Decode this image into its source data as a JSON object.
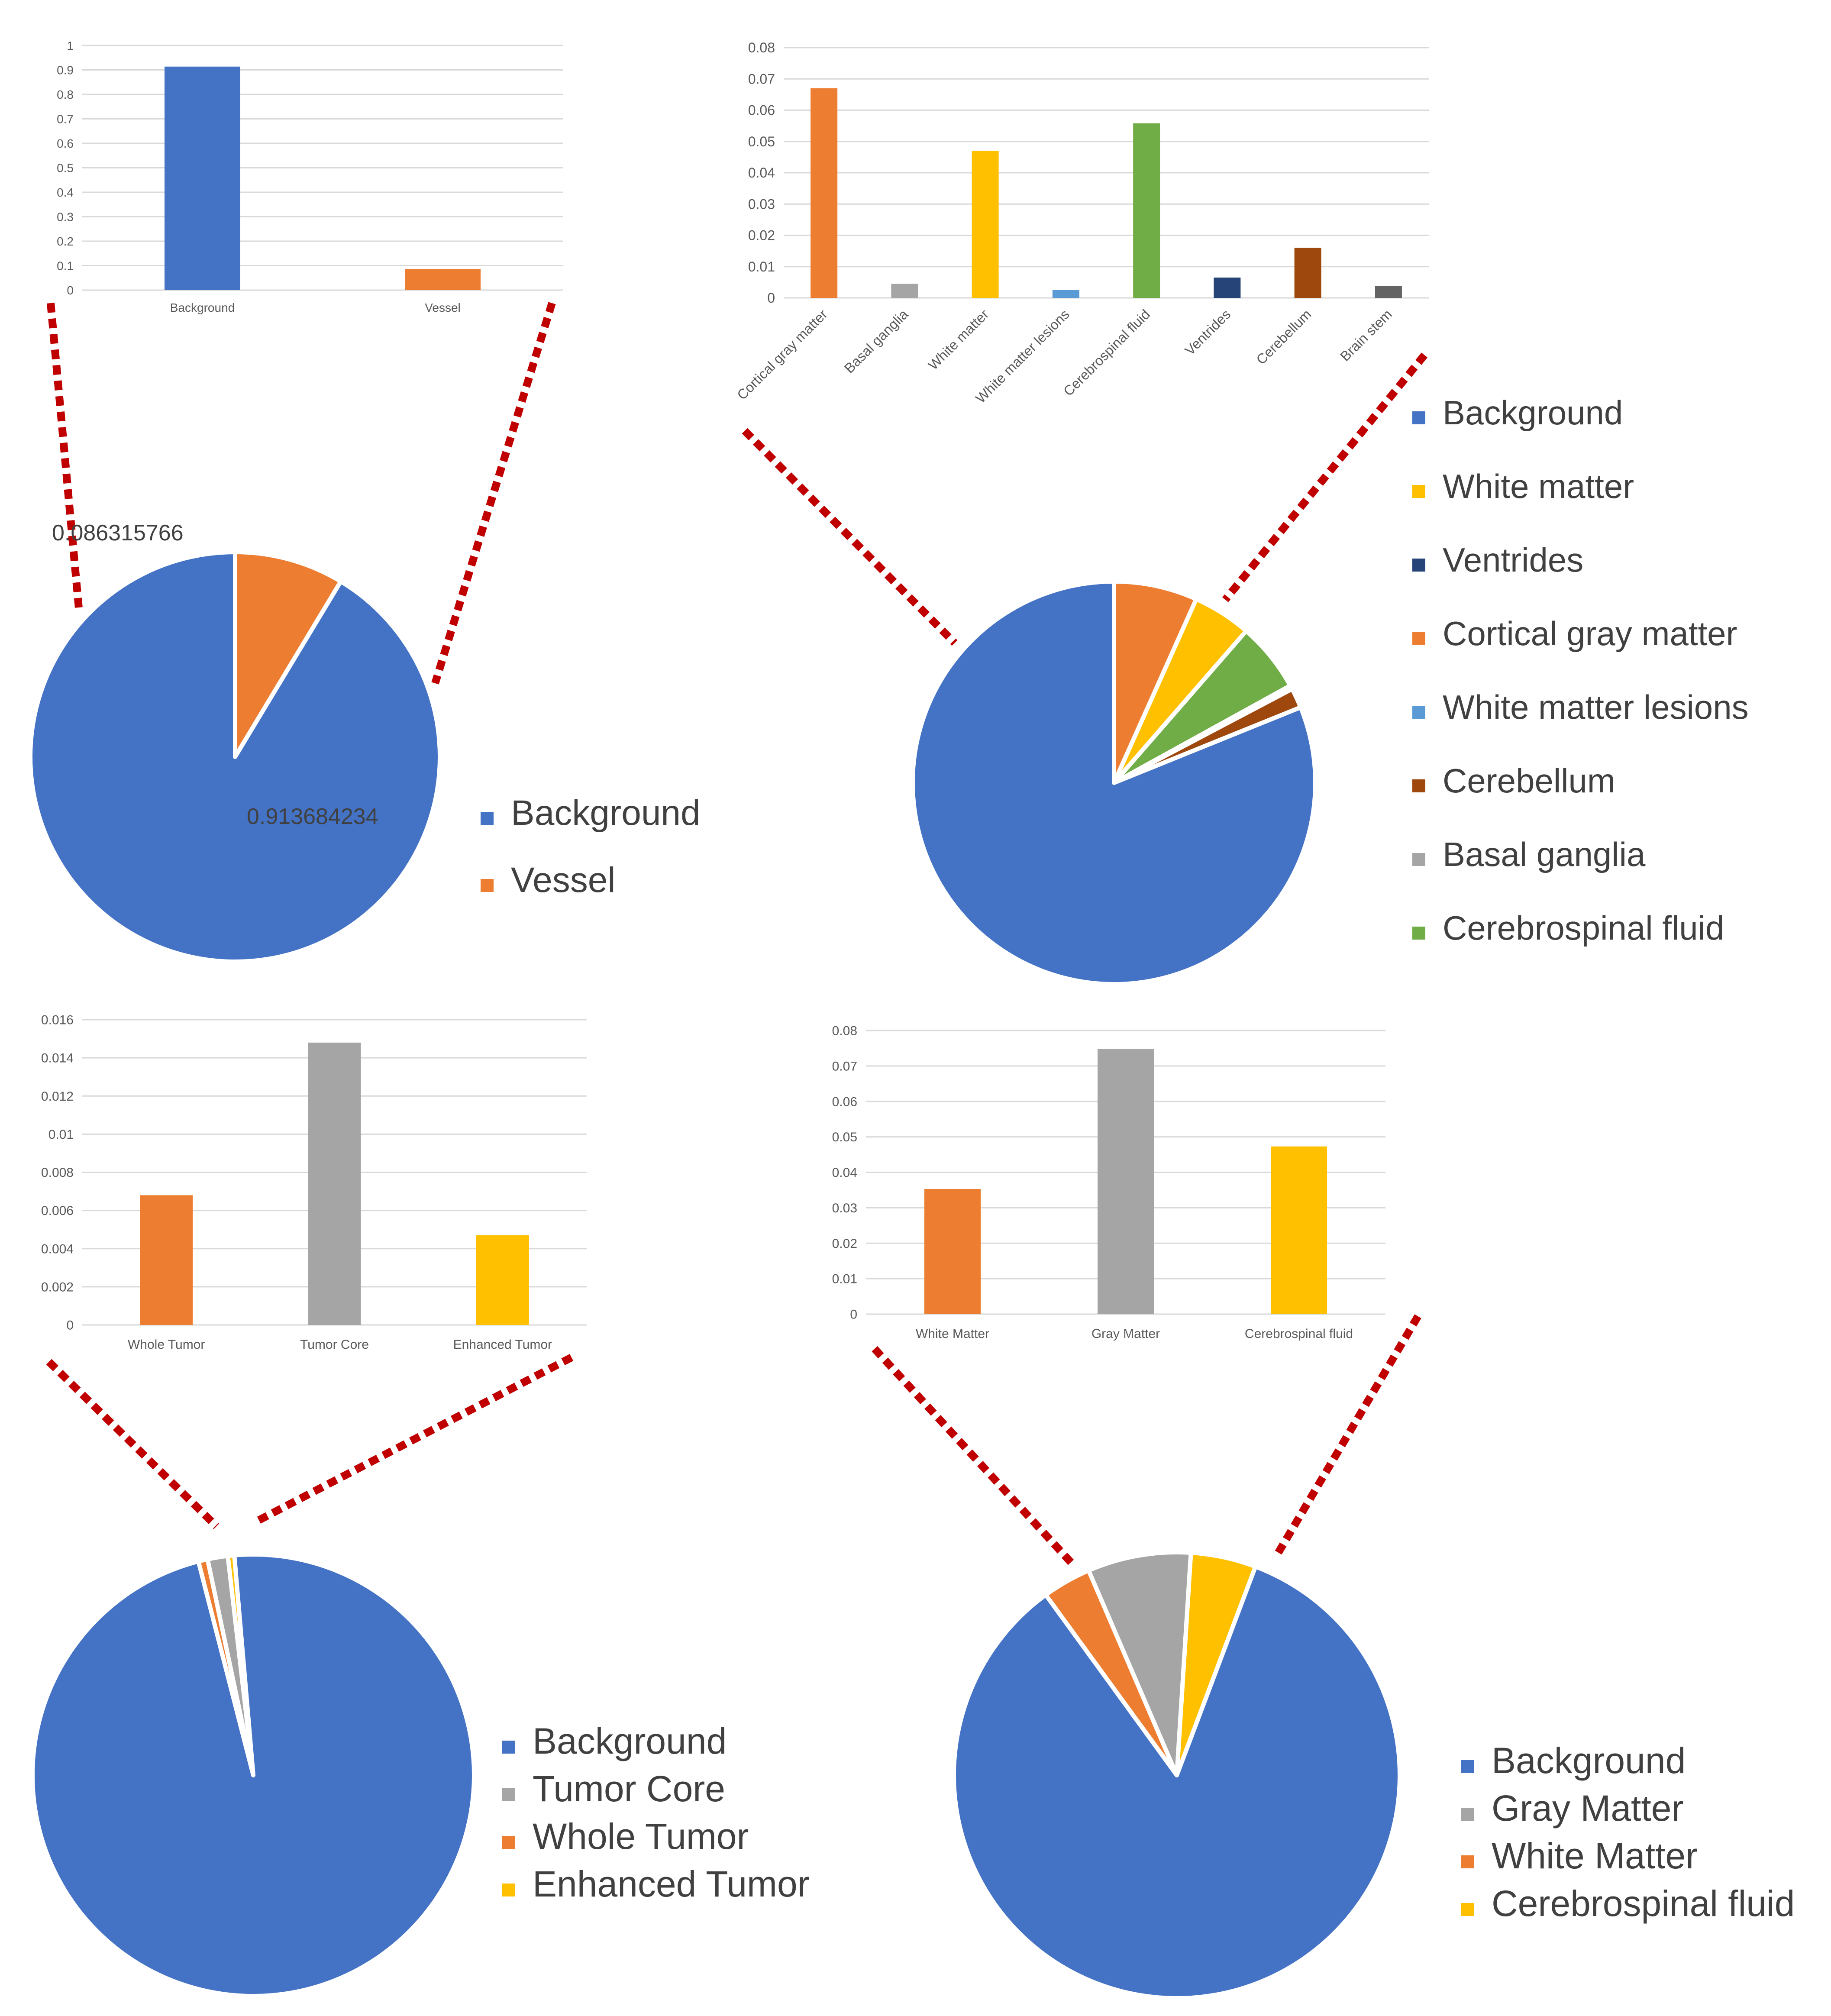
{
  "colors": {
    "blue": "#4472C4",
    "orange": "#ED7D31",
    "gray": "#A5A5A5",
    "yellow": "#FFC000",
    "light_blue": "#5B9BD5",
    "green": "#70AD47",
    "dark_blue": "#264478",
    "brown": "#9E480E",
    "dark_gray": "#636363",
    "connector": "#C00000",
    "grid": "#D9D9D9",
    "axis_text": "#595959",
    "legend_text": "#404040"
  },
  "chart_data": [
    {
      "id": "vessel",
      "bar": {
        "type": "bar",
        "categories": [
          "Background",
          "Vessel"
        ],
        "values": [
          0.913684234,
          0.086315766
        ],
        "colors": [
          "blue",
          "orange"
        ],
        "ylim": [
          0,
          1
        ],
        "ticks": [
          "0",
          "0.1",
          "0.2",
          "0.3",
          "0.4",
          "0.5",
          "0.6",
          "0.7",
          "0.8",
          "0.9",
          "1"
        ]
      },
      "pie": {
        "type": "pie",
        "labels": [
          "Vessel",
          "Background"
        ],
        "values": [
          0.086315766,
          0.913684234
        ],
        "colors": [
          "orange",
          "blue"
        ],
        "data_labels": [
          "0.086315766",
          "0.913684234"
        ]
      },
      "legend": [
        {
          "label": "Background",
          "color": "blue"
        },
        {
          "label": "Vessel",
          "color": "orange"
        }
      ]
    },
    {
      "id": "brain_tissue",
      "bar": {
        "type": "bar",
        "categories": [
          "Cortical gray matter",
          "Basal ganglia",
          "White matter",
          "White matter lesions",
          "Cerebrospinal fluid",
          "Ventrides",
          "Cerebellum",
          "Brain stem"
        ],
        "values": [
          0.067,
          0.0045,
          0.047,
          0.0025,
          0.0558,
          0.0065,
          0.016,
          0.0038
        ],
        "colors": [
          "orange",
          "gray",
          "yellow",
          "light_blue",
          "green",
          "dark_blue",
          "brown",
          "dark_gray"
        ],
        "ylim": [
          0,
          0.08
        ],
        "ticks": [
          "0",
          "0.01",
          "0.02",
          "0.03",
          "0.04",
          "0.05",
          "0.06",
          "0.07",
          "0.08"
        ]
      },
      "pie": {
        "type": "pie",
        "labels": [
          "Cortical gray matter",
          "White matter",
          "Cerebrospinal fluid",
          "White matter lesions",
          "Cerebellum",
          "Background"
        ],
        "values": [
          0.067,
          0.047,
          0.0558,
          0.003,
          0.016,
          0.8112
        ],
        "colors": [
          "orange",
          "yellow",
          "green",
          "light_blue",
          "brown",
          "blue"
        ]
      },
      "legend": [
        {
          "label": "Background",
          "color": "blue"
        },
        {
          "label": "White matter",
          "color": "yellow"
        },
        {
          "label": "Ventrides",
          "color": "dark_blue"
        },
        {
          "label": "Cortical gray matter",
          "color": "orange"
        },
        {
          "label": "White matter lesions",
          "color": "light_blue"
        },
        {
          "label": "Cerebellum",
          "color": "brown"
        },
        {
          "label": "Basal ganglia",
          "color": "gray"
        },
        {
          "label": "Cerebrospinal fluid",
          "color": "green"
        }
      ]
    },
    {
      "id": "tumor",
      "bar": {
        "type": "bar",
        "categories": [
          "Whole Tumor",
          "Tumor Core",
          "Enhanced Tumor"
        ],
        "values": [
          0.0068,
          0.0148,
          0.0047
        ],
        "colors": [
          "orange",
          "gray",
          "yellow"
        ],
        "ylim": [
          0,
          0.016
        ],
        "ticks": [
          "0",
          "0.002",
          "0.004",
          "0.006",
          "0.008",
          "0.01",
          "0.012",
          "0.014",
          "0.016"
        ]
      },
      "pie": {
        "type": "pie",
        "labels": [
          "Whole Tumor",
          "Tumor Core",
          "Enhanced Tumor",
          "Background"
        ],
        "values": [
          0.0068,
          0.0148,
          0.0047,
          0.9737
        ],
        "colors": [
          "orange",
          "gray",
          "yellow",
          "blue"
        ]
      },
      "legend": [
        {
          "label": "Background",
          "color": "blue"
        },
        {
          "label": "Tumor Core",
          "color": "gray"
        },
        {
          "label": "Whole Tumor",
          "color": "orange"
        },
        {
          "label": "Enhanced Tumor",
          "color": "yellow"
        }
      ]
    },
    {
      "id": "brain_matter",
      "bar": {
        "type": "bar",
        "categories": [
          "White Matter",
          "Gray Matter",
          "Cerebrospinal fluid"
        ],
        "values": [
          0.0353,
          0.0748,
          0.0473
        ],
        "colors": [
          "orange",
          "gray",
          "yellow"
        ],
        "ylim": [
          0,
          0.08
        ],
        "ticks": [
          "0",
          "0.01",
          "0.02",
          "0.03",
          "0.04",
          "0.05",
          "0.06",
          "0.07",
          "0.08"
        ]
      },
      "pie": {
        "type": "pie",
        "labels": [
          "White Matter",
          "Gray Matter",
          "Cerebrospinal fluid",
          "Background"
        ],
        "values": [
          0.0353,
          0.0748,
          0.0473,
          0.8426
        ],
        "colors": [
          "orange",
          "gray",
          "yellow",
          "blue"
        ]
      },
      "legend": [
        {
          "label": "Background",
          "color": "blue"
        },
        {
          "label": "Gray Matter",
          "color": "gray"
        },
        {
          "label": "White Matter",
          "color": "orange"
        },
        {
          "label": "Cerebrospinal fluid",
          "color": "yellow"
        }
      ]
    }
  ]
}
